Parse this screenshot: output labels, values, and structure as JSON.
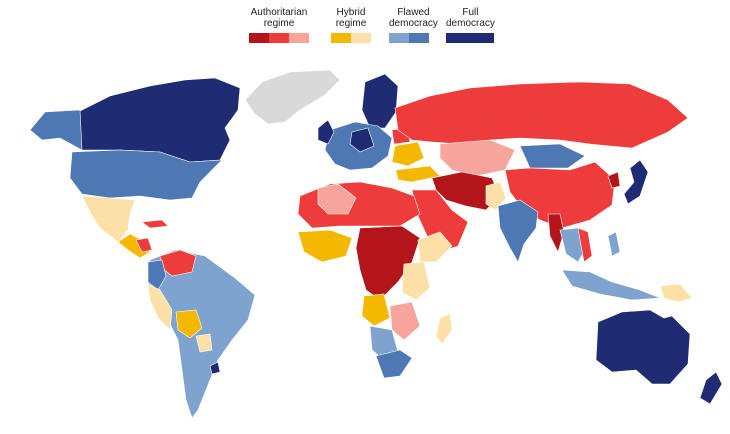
{
  "legend": {
    "authoritarian": {
      "label": "Authoritarian\nregime",
      "colors": [
        "#b3151b",
        "#ee3b3b",
        "#f7a59c"
      ]
    },
    "hybrid": {
      "label": "Hybrid\nregime",
      "colors": [
        "#f5b800",
        "#fde0a8"
      ]
    },
    "flawed": {
      "label": "Flawed\ndemocracy",
      "colors": [
        "#7fa3cf",
        "#4d78b4"
      ]
    },
    "full": {
      "label": "Full\ndemocracy",
      "colors": [
        "#1f2c74"
      ]
    }
  },
  "colors": {
    "no_data": "#d9d9d9",
    "background": "#ffffff"
  }
}
